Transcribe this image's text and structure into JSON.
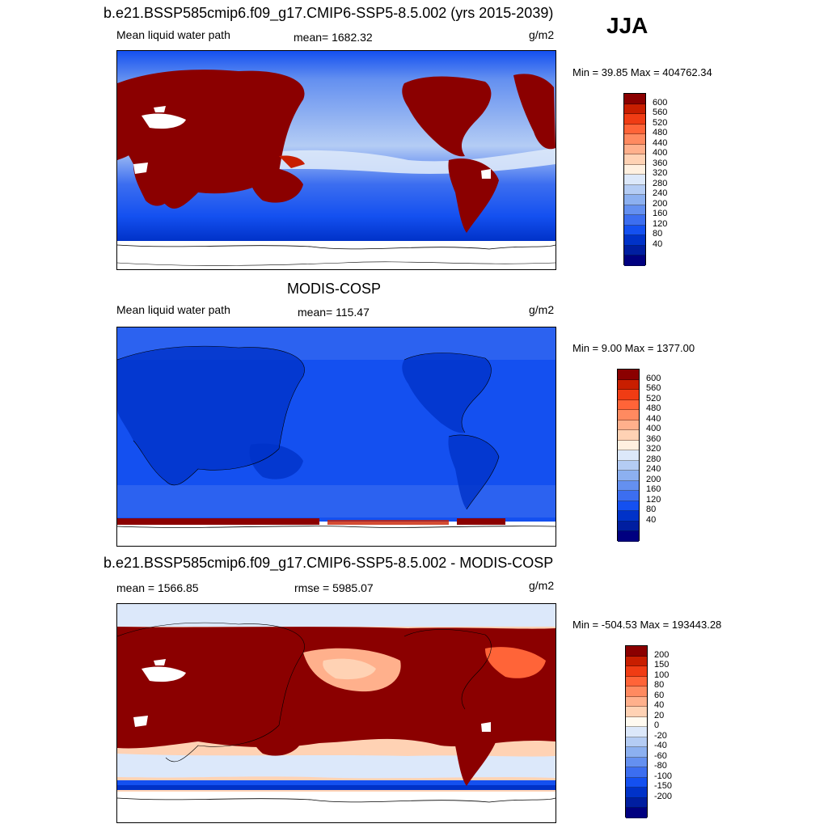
{
  "season": "JJA",
  "colors": {
    "seq": [
      "#000080",
      "#001ea0",
      "#0032c8",
      "#1450f0",
      "#3c6ef0",
      "#6490f0",
      "#8cb0f0",
      "#b4ccf4",
      "#dce8fa",
      "#fff0e0",
      "#ffd2b4",
      "#ffb08c",
      "#ff8a60",
      "#ff6438",
      "#f03c14",
      "#c81e00",
      "#8b0000"
    ],
    "diff": [
      "#000080",
      "#001ea0",
      "#0032c8",
      "#1450f0",
      "#3c6ef0",
      "#6490f0",
      "#8cb0f0",
      "#b4ccf4",
      "#dce8fa",
      "#fffaf0",
      "#ffd2b4",
      "#ffb08c",
      "#ff8a60",
      "#ff6438",
      "#f03c14",
      "#c81e00",
      "#8b0000"
    ]
  },
  "panels": [
    {
      "title": "b.e21.BSSP585cmip6.f09_g17.CMIP6-SSP5-8.5.002 (yrs 2015-2039)",
      "left_label": "Mean liquid water path",
      "center_label": "mean= 1682.32",
      "units": "g/m2",
      "minmax": "Min =  39.85 Max = 404762.34",
      "colorbar_ticks": [
        "600",
        "560",
        "520",
        "480",
        "440",
        "400",
        "360",
        "320",
        "280",
        "240",
        "200",
        "160",
        "120",
        "80",
        "40"
      ]
    },
    {
      "title": "MODIS-COSP",
      "left_label": "Mean liquid water path",
      "center_label": "mean= 115.47",
      "units": "g/m2",
      "minmax": "Min =   9.00 Max = 1377.00",
      "colorbar_ticks": [
        "600",
        "560",
        "520",
        "480",
        "440",
        "400",
        "360",
        "320",
        "280",
        "240",
        "200",
        "160",
        "120",
        "80",
        "40"
      ]
    },
    {
      "title": "b.e21.BSSP585cmip6.f09_g17.CMIP6-SSP5-8.5.002 - MODIS-COSP",
      "left_label": "mean = 1566.85",
      "center_label": "rmse = 5985.07",
      "units": "g/m2",
      "minmax": "Min = -504.53 Max = 193443.28",
      "colorbar_ticks": [
        "200",
        "150",
        "100",
        "80",
        "60",
        "40",
        "20",
        "0",
        "-20",
        "-40",
        "-60",
        "-80",
        "-100",
        "-150",
        "-200"
      ]
    }
  ]
}
